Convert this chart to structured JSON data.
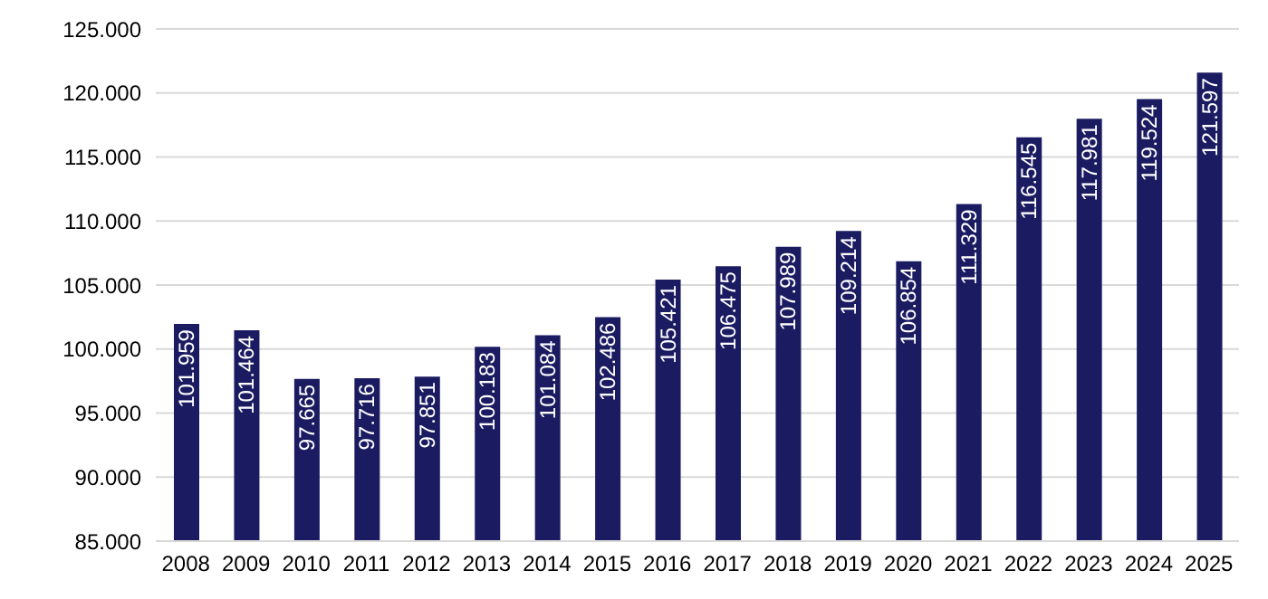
{
  "chart_data": {
    "type": "bar",
    "categories": [
      "2008",
      "2009",
      "2010",
      "2011",
      "2012",
      "2013",
      "2014",
      "2015",
      "2016",
      "2017",
      "2018",
      "2019",
      "2020",
      "2021",
      "2022",
      "2023",
      "2024",
      "2025"
    ],
    "values": [
      101959,
      101464,
      97665,
      97716,
      97851,
      100183,
      101084,
      102486,
      105421,
      106475,
      107989,
      109214,
      106854,
      111329,
      116545,
      117981,
      119524,
      121597
    ],
    "value_labels": [
      "101.959",
      "101.464",
      "97.665",
      "97.716",
      "97.851",
      "100.183",
      "101.084",
      "102.486",
      "105.421",
      "106.475",
      "107.989",
      "109.214",
      "106.854",
      "111.329",
      "116.545",
      "117.981",
      "119.524",
      "121.597"
    ],
    "color": "#1b1b62",
    "ylim": [
      85000,
      125000
    ],
    "yticks": [
      {
        "value": 85000,
        "label": "85.000"
      },
      {
        "value": 90000,
        "label": "90.000"
      },
      {
        "value": 95000,
        "label": "95.000"
      },
      {
        "value": 100000,
        "label": "100.000"
      },
      {
        "value": 105000,
        "label": "105.000"
      },
      {
        "value": 110000,
        "label": "110.000"
      },
      {
        "value": 115000,
        "label": "115.000"
      },
      {
        "value": 120000,
        "label": "120.000"
      },
      {
        "value": 125000,
        "label": "125.000"
      }
    ],
    "grid": "y"
  }
}
